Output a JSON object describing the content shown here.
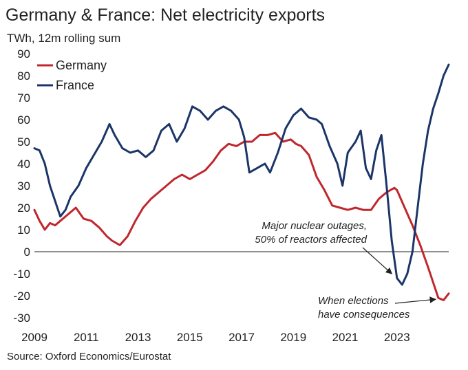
{
  "chart_data": {
    "type": "line",
    "title": "Germany & France: Net electricity exports",
    "subtitle": "TWh, 12m rolling sum",
    "source": "Source: Oxford Economics/Eurostat",
    "ylim": [
      -30,
      90
    ],
    "yticks": [
      "90",
      "80",
      "70",
      "60",
      "50",
      "40",
      "30",
      "20",
      "10",
      "0",
      "-10",
      "-20",
      "-30"
    ],
    "xlim": [
      2009,
      2025
    ],
    "xticks": [
      "2009",
      "2011",
      "2013",
      "2015",
      "2017",
      "2019",
      "2021",
      "2023"
    ],
    "legend": {
      "position": "top-left"
    },
    "zero_line": true,
    "series": [
      {
        "name": "Germany",
        "color": "#c0272d",
        "x": [
          2009.0,
          2009.2,
          2009.4,
          2009.6,
          2009.8,
          2010.0,
          2010.3,
          2010.6,
          2010.9,
          2011.2,
          2011.5,
          2011.8,
          2012.0,
          2012.3,
          2012.6,
          2012.9,
          2013.2,
          2013.5,
          2013.8,
          2014.1,
          2014.4,
          2014.7,
          2015.0,
          2015.3,
          2015.6,
          2015.9,
          2016.2,
          2016.5,
          2016.8,
          2017.1,
          2017.4,
          2017.7,
          2018.0,
          2018.3,
          2018.6,
          2018.9,
          2019.1,
          2019.3,
          2019.6,
          2019.9,
          2020.2,
          2020.5,
          2020.8,
          2021.1,
          2021.4,
          2021.7,
          2022.0,
          2022.3,
          2022.6,
          2022.9,
          2023.0,
          2023.3,
          2023.6,
          2023.9,
          2024.2,
          2024.4,
          2024.6,
          2024.8,
          2025.0
        ],
        "values": [
          19,
          14,
          10,
          13,
          12,
          14,
          17,
          20,
          15,
          14,
          11,
          7,
          5,
          3,
          7,
          14,
          20,
          24,
          27,
          30,
          33,
          35,
          33,
          35,
          37,
          41,
          46,
          49,
          48,
          50,
          50,
          53,
          53,
          54,
          50,
          51,
          49,
          48,
          44,
          34,
          28,
          21,
          20,
          19,
          20,
          19,
          19,
          24,
          27,
          29,
          28,
          20,
          12,
          3,
          -7,
          -14,
          -21,
          -22,
          -19
        ]
      },
      {
        "name": "France",
        "color": "#1b3568",
        "x": [
          2009.0,
          2009.2,
          2009.4,
          2009.6,
          2009.8,
          2010.0,
          2010.2,
          2010.4,
          2010.7,
          2011.0,
          2011.3,
          2011.6,
          2011.9,
          2012.1,
          2012.4,
          2012.7,
          2013.0,
          2013.3,
          2013.6,
          2013.9,
          2014.2,
          2014.5,
          2014.8,
          2015.1,
          2015.4,
          2015.7,
          2016.0,
          2016.3,
          2016.6,
          2016.9,
          2017.1,
          2017.3,
          2017.6,
          2017.9,
          2018.1,
          2018.4,
          2018.7,
          2019.0,
          2019.3,
          2019.6,
          2019.9,
          2020.1,
          2020.4,
          2020.7,
          2020.9,
          2021.1,
          2021.4,
          2021.6,
          2021.8,
          2022.0,
          2022.2,
          2022.4,
          2022.6,
          2022.8,
          2023.0,
          2023.2,
          2023.4,
          2023.6,
          2023.8,
          2024.0,
          2024.2,
          2024.4,
          2024.6,
          2024.8,
          2025.0
        ],
        "values": [
          47,
          46,
          40,
          30,
          23,
          16,
          19,
          25,
          30,
          38,
          44,
          50,
          58,
          53,
          47,
          45,
          46,
          43,
          46,
          55,
          58,
          50,
          56,
          66,
          64,
          60,
          64,
          66,
          64,
          60,
          52,
          36,
          38,
          40,
          36,
          45,
          56,
          62,
          65,
          61,
          60,
          58,
          48,
          40,
          30,
          45,
          50,
          55,
          38,
          33,
          46,
          53,
          30,
          5,
          -12,
          -15,
          -10,
          0,
          20,
          40,
          55,
          65,
          72,
          80,
          85
        ]
      }
    ],
    "annotations": [
      {
        "lines": [
          "Major nuclear outages,",
          "50% of reactors affected"
        ]
      },
      {
        "lines": [
          "When elections",
          "have consequences"
        ]
      }
    ]
  }
}
